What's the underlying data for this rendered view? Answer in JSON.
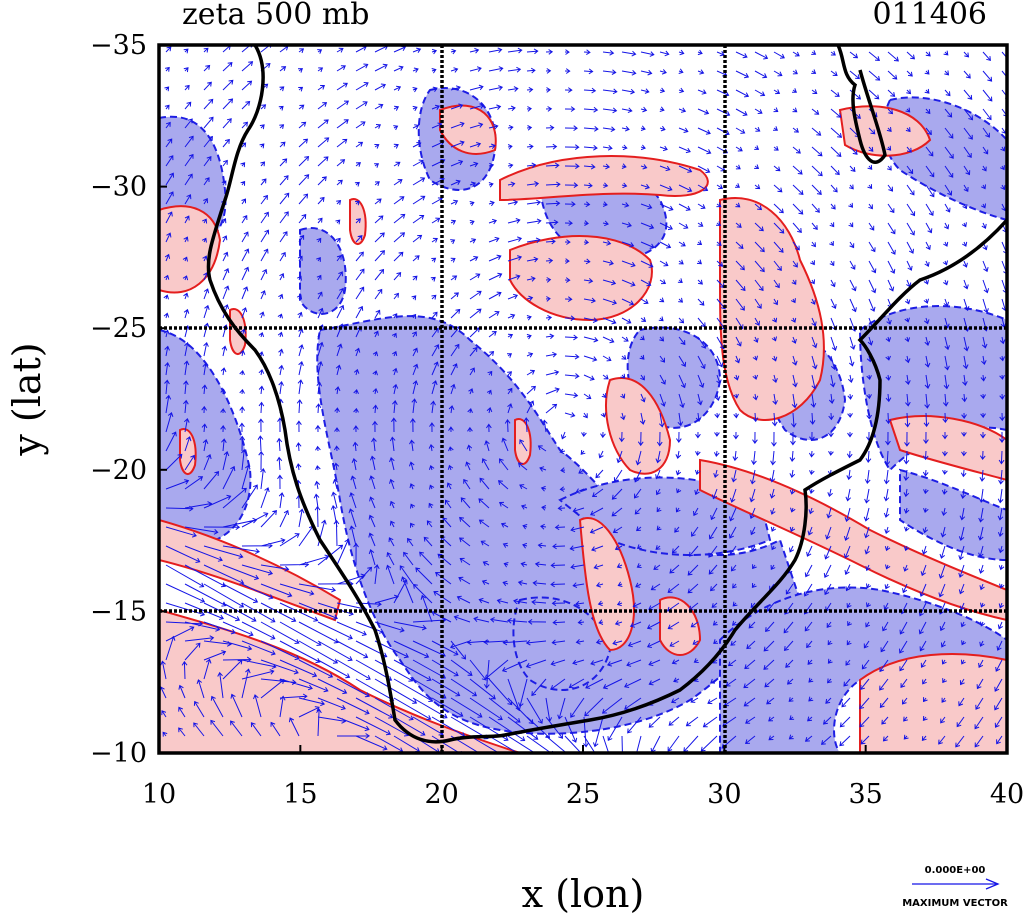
{
  "title": "zeta 500 mb",
  "date_code": "011406",
  "xlabel": "x (lon)",
  "ylabel": "y (lat)",
  "x_ticks": [
    10,
    15,
    20,
    25,
    30,
    35,
    40
  ],
  "y_ticks": [
    -35,
    -30,
    -25,
    -20,
    -15,
    -10
  ],
  "x_range": [
    10,
    40
  ],
  "y_range": [
    -35,
    -10
  ],
  "y_axis_inverted": true,
  "grid_lines": {
    "x": [
      20,
      30
    ],
    "y": [
      -25,
      -15
    ]
  },
  "legend": {
    "magnitude_label": "0.000E+00",
    "caption": "MAXIMUM VECTOR"
  },
  "colors": {
    "positive_fill": "#f9c9c9",
    "positive_line": "#e41e1e",
    "negative_fill": "#a9a9ee",
    "negative_line": "#1e1ee4",
    "vector": "#1515e6",
    "coastline": "#000000",
    "grid": "#000000"
  },
  "icons": {
    "vector_arrow": "arrow-icon"
  }
}
